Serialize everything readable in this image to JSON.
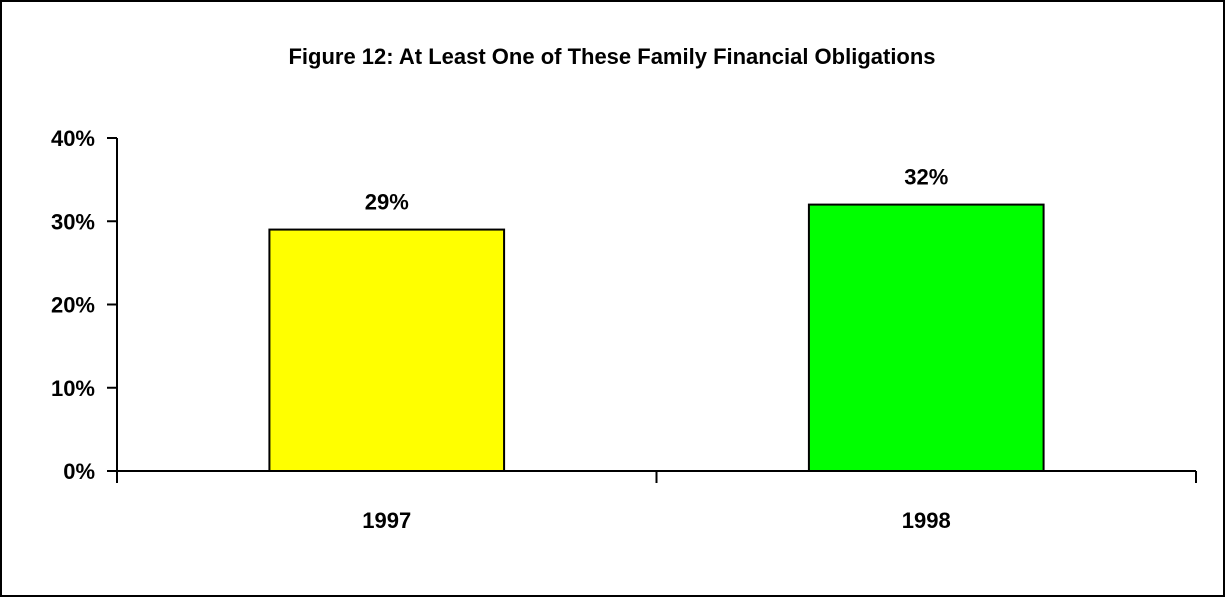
{
  "chart_data": {
    "type": "bar",
    "title": "Figure 12:  At Least One of These Family Financial Obligations",
    "xlabel": "",
    "ylabel": "",
    "categories": [
      "1997",
      "1998"
    ],
    "values": [
      29,
      32
    ],
    "data_labels": [
      "29%",
      "32%"
    ],
    "bar_colors": [
      "#ffff00",
      "#00ff00"
    ],
    "ylim": [
      0,
      40
    ],
    "yticks": [
      0,
      10,
      20,
      30,
      40
    ],
    "ytick_labels": [
      "0%",
      "10%",
      "20%",
      "30%",
      "40%"
    ],
    "grid": false,
    "legend": "none"
  }
}
